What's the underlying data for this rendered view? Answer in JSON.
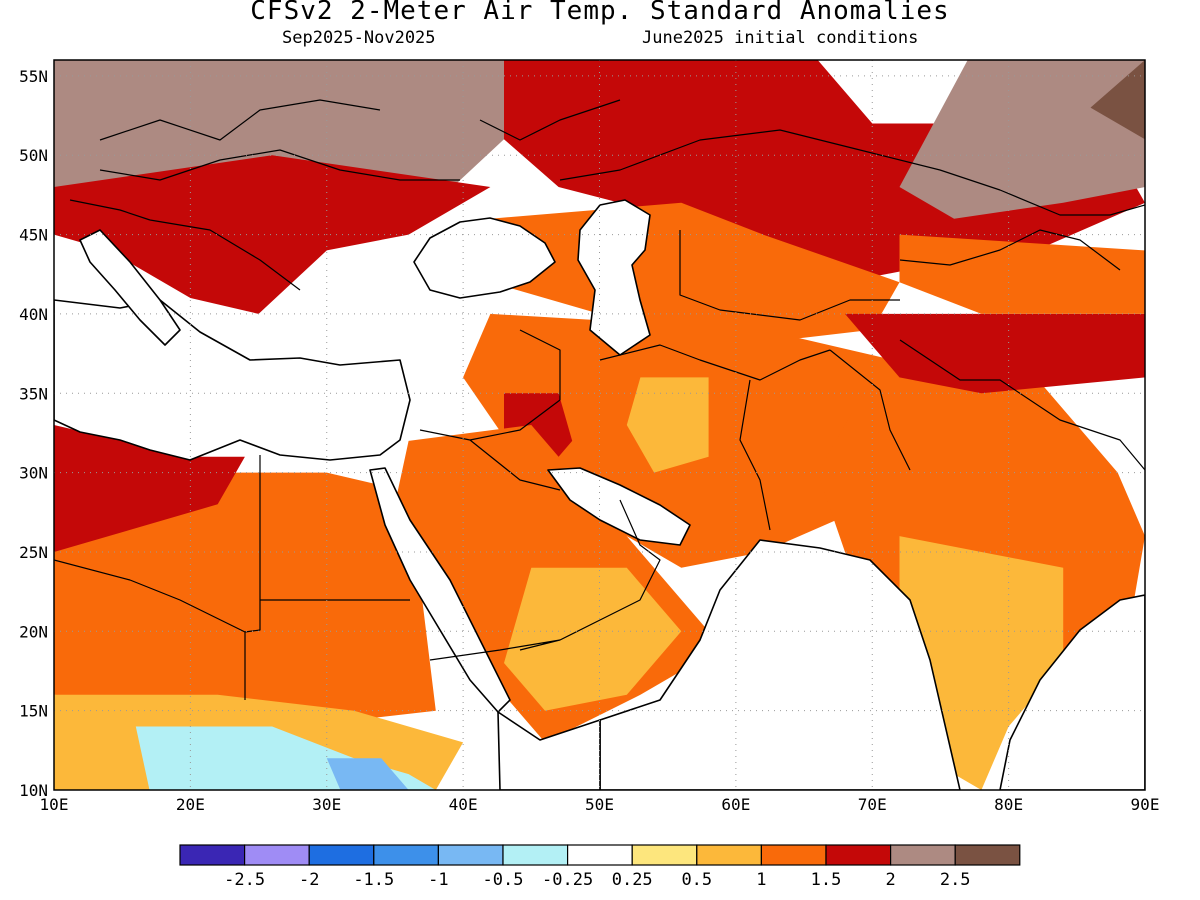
{
  "header": {
    "title": "CFSv2 2-Meter Air Temp. Standard Anomalies",
    "period": "Sep2025-Nov2025",
    "init": "June2025 initial conditions"
  },
  "chart_data": {
    "type": "heatmap",
    "title": "CFSv2 2-Meter Air Temp. Standard Anomalies",
    "subtitle": "Sep2025-Nov2025",
    "xlim": [
      10,
      90
    ],
    "ylim": [
      10,
      56
    ],
    "x_ticks": [
      "10E",
      "20E",
      "30E",
      "40E",
      "50E",
      "60E",
      "70E",
      "80E",
      "90E"
    ],
    "y_ticks": [
      "10N",
      "15N",
      "20N",
      "25N",
      "30N",
      "35N",
      "40N",
      "45N",
      "50N",
      "55N"
    ],
    "grid": "dotted",
    "legend_labels": [
      "-2.5",
      "-2",
      "-1.5",
      "-1",
      "-0.5",
      "-0.25",
      "0.25",
      "0.5",
      "1",
      "1.5",
      "2",
      "2.5"
    ],
    "legend_colors": [
      "#3a26b4",
      "#9f8cf5",
      "#1e6ee1",
      "#3d90ea",
      "#78b8f3",
      "#b3f0f5",
      "#ffffff",
      "#fde67d",
      "#fcb83a",
      "#f96a0a",
      "#c40808",
      "#ad8a82",
      "#7a5242"
    ],
    "regions": [
      {
        "name": "central-asia-strong-warm",
        "level": 1.75,
        "poly": [
          [
            43,
            56
          ],
          [
            66,
            56
          ],
          [
            70,
            52
          ],
          [
            79,
            52
          ],
          [
            88,
            50
          ],
          [
            90,
            47
          ],
          [
            82,
            44
          ],
          [
            74,
            43
          ],
          [
            62,
            41
          ],
          [
            56,
            46
          ],
          [
            47,
            48
          ],
          [
            43,
            51
          ]
        ]
      },
      {
        "name": "caucasus-caspian-warm",
        "level": 1.25,
        "poly": [
          [
            42,
            46
          ],
          [
            56,
            47
          ],
          [
            62,
            45
          ],
          [
            72,
            42
          ],
          [
            70,
            39
          ],
          [
            60,
            38
          ],
          [
            50,
            40
          ],
          [
            42,
            42
          ]
        ]
      },
      {
        "name": "iran-warm",
        "level": 1.25,
        "poly": [
          [
            42,
            40
          ],
          [
            62,
            39
          ],
          [
            72,
            37
          ],
          [
            75,
            32
          ],
          [
            70,
            28
          ],
          [
            62,
            25
          ],
          [
            56,
            24
          ],
          [
            50,
            27
          ],
          [
            44,
            31
          ],
          [
            40,
            36
          ]
        ]
      },
      {
        "name": "iraq-strong-warm",
        "level": 1.75,
        "poly": [
          [
            43,
            35
          ],
          [
            47,
            35
          ],
          [
            48,
            32
          ],
          [
            46,
            30
          ],
          [
            43,
            31
          ]
        ]
      },
      {
        "name": "iran-mid-warm",
        "level": 0.75,
        "poly": [
          [
            53,
            36
          ],
          [
            58,
            36
          ],
          [
            58,
            31
          ],
          [
            54,
            30
          ],
          [
            52,
            33
          ]
        ]
      },
      {
        "name": "arabia-warm",
        "level": 1.25,
        "poly": [
          [
            36,
            32
          ],
          [
            45,
            33
          ],
          [
            51,
            27
          ],
          [
            56,
            22
          ],
          [
            59,
            19
          ],
          [
            53,
            16
          ],
          [
            46,
            13
          ],
          [
            43,
            16
          ],
          [
            39,
            22
          ],
          [
            35,
            28
          ]
        ]
      },
      {
        "name": "arabia-mild-warm",
        "level": 0.75,
        "poly": [
          [
            45,
            24
          ],
          [
            52,
            24
          ],
          [
            56,
            20
          ],
          [
            52,
            16
          ],
          [
            46,
            15
          ],
          [
            43,
            18
          ]
        ]
      },
      {
        "name": "sahara-warm",
        "level": 1.25,
        "poly": [
          [
            10,
            31
          ],
          [
            20,
            30
          ],
          [
            30,
            30
          ],
          [
            35,
            29
          ],
          [
            37,
            22
          ],
          [
            38,
            15
          ],
          [
            28,
            14
          ],
          [
            20,
            15
          ],
          [
            10,
            16
          ]
        ]
      },
      {
        "name": "libya-strong-warm",
        "level": 1.75,
        "poly": [
          [
            10,
            33
          ],
          [
            20,
            31
          ],
          [
            24,
            31
          ],
          [
            22,
            28
          ],
          [
            14,
            26
          ],
          [
            10,
            25
          ]
        ]
      },
      {
        "name": "sahel-mild",
        "level": 0.5,
        "poly": [
          [
            10,
            16
          ],
          [
            22,
            16
          ],
          [
            32,
            15
          ],
          [
            40,
            13
          ],
          [
            38,
            10
          ],
          [
            10,
            10
          ]
        ]
      },
      {
        "name": "horn-cool",
        "level": -0.5,
        "poly": [
          [
            16,
            14
          ],
          [
            26,
            14
          ],
          [
            32,
            12
          ],
          [
            36,
            11
          ],
          [
            38,
            10
          ],
          [
            17,
            10
          ]
        ]
      },
      {
        "name": "sudan-cool",
        "level": -1.0,
        "poly": [
          [
            30,
            12
          ],
          [
            34,
            12
          ],
          [
            36,
            10
          ],
          [
            31,
            10
          ]
        ]
      },
      {
        "name": "india-warm",
        "level": 1.25,
        "poly": [
          [
            70,
            36
          ],
          [
            82,
            36
          ],
          [
            88,
            30
          ],
          [
            90,
            26
          ],
          [
            89,
            21
          ],
          [
            85,
            19
          ],
          [
            80,
            16
          ],
          [
            76,
            11
          ],
          [
            72,
            20
          ],
          [
            68,
            25
          ],
          [
            66,
            30
          ]
        ]
      },
      {
        "name": "india-mid",
        "level": 0.75,
        "poly": [
          [
            72,
            26
          ],
          [
            84,
            24
          ],
          [
            84,
            18
          ],
          [
            80,
            14
          ],
          [
            78,
            10
          ],
          [
            74,
            12
          ],
          [
            72,
            20
          ]
        ]
      },
      {
        "name": "south-india-mild",
        "level": 0.5,
        "poly": [
          [
            74,
            18
          ],
          [
            78,
            18
          ],
          [
            78,
            13
          ],
          [
            76,
            11
          ],
          [
            74,
            13
          ]
        ]
      },
      {
        "name": "himalaya-warm",
        "level": 1.75,
        "poly": [
          [
            68,
            40
          ],
          [
            90,
            40
          ],
          [
            90,
            36
          ],
          [
            78,
            35
          ],
          [
            72,
            36
          ]
        ]
      },
      {
        "name": "europe-above",
        "level": 2.25,
        "poly": [
          [
            10,
            56
          ],
          [
            30,
            56
          ],
          [
            43,
            56
          ],
          [
            43,
            51
          ],
          [
            38,
            47
          ],
          [
            30,
            47
          ],
          [
            22,
            46
          ],
          [
            14,
            47
          ],
          [
            10,
            48
          ]
        ]
      },
      {
        "name": "europe-red",
        "level": 1.75,
        "poly": [
          [
            10,
            48
          ],
          [
            18,
            49
          ],
          [
            26,
            50
          ],
          [
            34,
            49
          ],
          [
            42,
            48
          ],
          [
            36,
            45
          ],
          [
            30,
            44
          ],
          [
            25,
            40
          ],
          [
            20,
            41
          ],
          [
            14,
            44
          ],
          [
            10,
            45
          ]
        ]
      },
      {
        "name": "mongolia-above",
        "level": 2.25,
        "poly": [
          [
            77,
            56
          ],
          [
            90,
            56
          ],
          [
            90,
            48
          ],
          [
            84,
            47
          ],
          [
            76,
            46
          ],
          [
            72,
            48
          ]
        ]
      },
      {
        "name": "mongolia-dark",
        "level": 2.75,
        "poly": [
          [
            86,
            53
          ],
          [
            90,
            56
          ],
          [
            90,
            51
          ]
        ]
      },
      {
        "name": "nw-china-warm",
        "level": 1.25,
        "poly": [
          [
            72,
            45
          ],
          [
            90,
            44
          ],
          [
            90,
            40
          ],
          [
            78,
            40
          ],
          [
            72,
            42
          ]
        ]
      }
    ]
  }
}
